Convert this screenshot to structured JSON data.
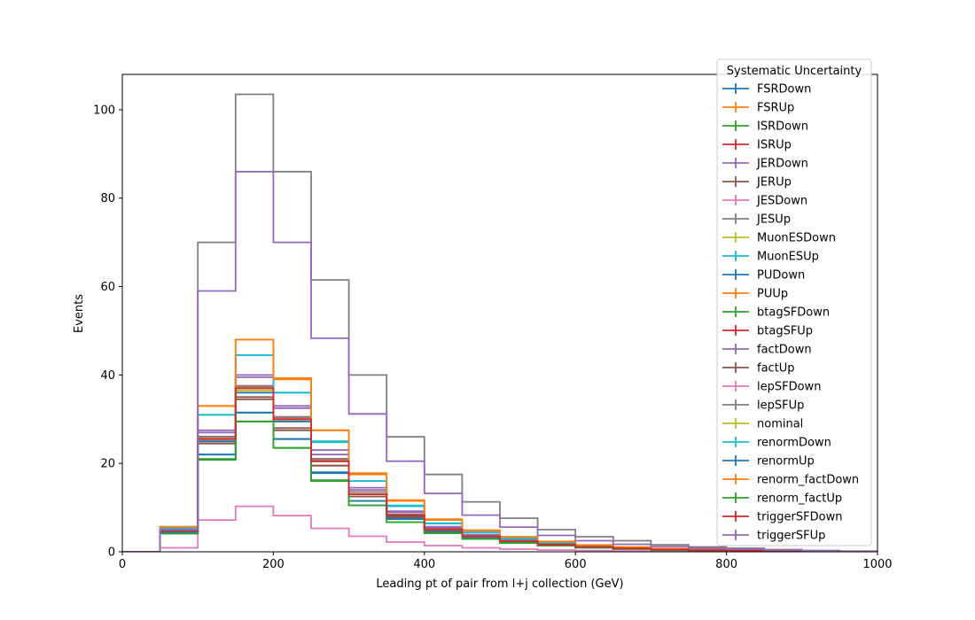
{
  "chart_data": {
    "type": "histogram-step",
    "title": "",
    "xlabel": "Leading pt of pair from l+j collection (GeV)",
    "ylabel": "Events",
    "xlim": [
      0,
      1000
    ],
    "ylim": [
      0,
      108
    ],
    "x_ticks": [
      0,
      200,
      400,
      600,
      800,
      1000
    ],
    "y_ticks": [
      0,
      20,
      40,
      60,
      80,
      100
    ],
    "x_tick_labels": [
      "0",
      "200",
      "400",
      "600",
      "800",
      "1000"
    ],
    "y_tick_labels": [
      "0",
      "20",
      "40",
      "60",
      "80",
      "100"
    ],
    "grid": false,
    "legend": {
      "title": "Systematic Uncertainty",
      "placement": "top-right"
    },
    "bin_edges": [
      0,
      50,
      100,
      150,
      200,
      250,
      300,
      350,
      400,
      450,
      500,
      550,
      600,
      650,
      700,
      750,
      800,
      850,
      900,
      950,
      1000
    ],
    "series": [
      {
        "name": "FSRDown",
        "color": "#1f77b4",
        "values": [
          0,
          4.5,
          22,
          31.5,
          25.5,
          18,
          11.5,
          7.5,
          4.5,
          3.2,
          2.2,
          1.5,
          1.0,
          0.7,
          0.5,
          0.35,
          0.25,
          0.15,
          0.1,
          0.05
        ]
      },
      {
        "name": "FSRUp",
        "color": "#ff7f0e",
        "values": [
          0,
          4.8,
          26,
          37,
          30,
          21,
          13.5,
          8.5,
          5.2,
          3.6,
          2.5,
          1.7,
          1.1,
          0.8,
          0.55,
          0.4,
          0.28,
          0.17,
          0.1,
          0.05
        ]
      },
      {
        "name": "ISRDown",
        "color": "#2ca02c",
        "values": [
          0,
          4.4,
          25,
          37,
          30,
          20.5,
          13,
          8,
          5,
          3.5,
          2.4,
          1.6,
          1.1,
          0.75,
          0.5,
          0.38,
          0.26,
          0.16,
          0.1,
          0.05
        ]
      },
      {
        "name": "ISRUp",
        "color": "#d62728",
        "values": [
          0,
          4.9,
          26,
          37.5,
          30.5,
          21,
          13.5,
          8.5,
          5.2,
          3.6,
          2.5,
          1.7,
          1.1,
          0.8,
          0.55,
          0.4,
          0.28,
          0.17,
          0.1,
          0.05
        ]
      },
      {
        "name": "JERDown",
        "color": "#9467bd",
        "values": [
          0,
          5,
          27,
          40,
          32.5,
          22,
          14,
          9,
          5.5,
          3.8,
          2.6,
          1.8,
          1.2,
          0.85,
          0.6,
          0.42,
          0.3,
          0.18,
          0.11,
          0.05
        ]
      },
      {
        "name": "JERUp",
        "color": "#8c564b",
        "values": [
          0,
          4.6,
          24.5,
          35,
          28,
          19.5,
          12.5,
          7.8,
          4.8,
          3.3,
          2.3,
          1.6,
          1.05,
          0.72,
          0.5,
          0.36,
          0.25,
          0.15,
          0.1,
          0.05
        ]
      },
      {
        "name": "JESDown",
        "color": "#e377c2",
        "values": [
          0,
          0.9,
          7.2,
          10.3,
          8.2,
          5.3,
          3.5,
          2.2,
          1.4,
          0.9,
          0.6,
          0.4,
          0.28,
          0.19,
          0.13,
          0.09,
          0.06,
          0.04,
          0.02,
          0.01
        ]
      },
      {
        "name": "JESUp",
        "color": "#7f7f7f",
        "values": [
          0,
          5,
          70,
          103.5,
          86,
          61.5,
          40,
          26,
          17.5,
          11.3,
          7.6,
          5,
          3.4,
          2.5,
          1.6,
          1.1,
          0.8,
          0.5,
          0.3,
          0.15
        ]
      },
      {
        "name": "MuonESDown",
        "color": "#bcbd22",
        "values": [
          0,
          4.7,
          25.5,
          36.5,
          29.5,
          20.5,
          13,
          8.2,
          5,
          3.5,
          2.4,
          1.6,
          1.1,
          0.75,
          0.52,
          0.37,
          0.26,
          0.16,
          0.1,
          0.05
        ]
      },
      {
        "name": "MuonESUp",
        "color": "#17becf",
        "values": [
          0,
          5.5,
          31,
          44.5,
          36,
          25,
          16,
          10.5,
          6.5,
          4.4,
          3,
          2.1,
          1.4,
          0.95,
          0.66,
          0.46,
          0.32,
          0.2,
          0.12,
          0.06
        ]
      },
      {
        "name": "PUDown",
        "color": "#1f77b4",
        "values": [
          0,
          4.6,
          25,
          36,
          29.5,
          20.5,
          13,
          8.2,
          5,
          3.5,
          2.4,
          1.6,
          1.1,
          0.75,
          0.52,
          0.37,
          0.26,
          0.16,
          0.1,
          0.05
        ]
      },
      {
        "name": "PUUp",
        "color": "#ff7f0e",
        "values": [
          0,
          5.6,
          33,
          48,
          39,
          27.5,
          17.5,
          11.5,
          7.2,
          4.8,
          3.3,
          2.3,
          1.5,
          1.05,
          0.72,
          0.5,
          0.35,
          0.22,
          0.13,
          0.06
        ]
      },
      {
        "name": "btagSFDown",
        "color": "#2ca02c",
        "values": [
          0,
          4.2,
          21,
          29.5,
          23.5,
          16,
          10.5,
          6.7,
          4.2,
          2.9,
          2,
          1.4,
          0.95,
          0.65,
          0.45,
          0.32,
          0.22,
          0.14,
          0.08,
          0.04
        ]
      },
      {
        "name": "btagSFUp",
        "color": "#d62728",
        "values": [
          0,
          4.8,
          26,
          37.5,
          30.5,
          21,
          13.5,
          8.5,
          5.2,
          3.6,
          2.5,
          1.7,
          1.1,
          0.8,
          0.55,
          0.4,
          0.28,
          0.17,
          0.1,
          0.05
        ]
      },
      {
        "name": "factDown",
        "color": "#9467bd",
        "values": [
          0,
          4.9,
          27.5,
          39.5,
          33,
          23,
          14.5,
          9.2,
          5.7,
          3.9,
          2.7,
          1.85,
          1.25,
          0.88,
          0.62,
          0.43,
          0.3,
          0.19,
          0.11,
          0.06
        ]
      },
      {
        "name": "factUp",
        "color": "#8c564b",
        "values": [
          0,
          4.5,
          24.5,
          34.5,
          27.5,
          19.5,
          12.5,
          7.8,
          4.8,
          3.3,
          2.3,
          1.55,
          1.05,
          0.72,
          0.5,
          0.36,
          0.25,
          0.15,
          0.09,
          0.05
        ]
      },
      {
        "name": "lepSFDown",
        "color": "#e377c2",
        "values": [
          0,
          4.7,
          25.5,
          37,
          30,
          20.5,
          13,
          8.3,
          5.1,
          3.5,
          2.4,
          1.65,
          1.1,
          0.76,
          0.53,
          0.38,
          0.26,
          0.16,
          0.1,
          0.05
        ]
      },
      {
        "name": "lepSFUp",
        "color": "#7f7f7f",
        "values": [
          0,
          4.8,
          26,
          37.5,
          30.5,
          21,
          13.5,
          8.5,
          5.2,
          3.6,
          2.5,
          1.7,
          1.1,
          0.8,
          0.55,
          0.4,
          0.28,
          0.17,
          0.1,
          0.05
        ]
      },
      {
        "name": "nominal",
        "color": "#bcbd22",
        "values": [
          0,
          4.7,
          25.5,
          37,
          30,
          20.5,
          13,
          8.3,
          5.1,
          3.5,
          2.4,
          1.65,
          1.1,
          0.76,
          0.53,
          0.38,
          0.26,
          0.16,
          0.1,
          0.05
        ]
      },
      {
        "name": "renormDown",
        "color": "#17becf",
        "values": [
          0,
          5.3,
          31,
          44.5,
          36,
          24.8,
          16,
          10.3,
          6.4,
          4.4,
          3,
          2.1,
          1.4,
          0.95,
          0.66,
          0.46,
          0.32,
          0.2,
          0.12,
          0.06
        ]
      },
      {
        "name": "renormUp",
        "color": "#1f77b4",
        "values": [
          0,
          4.4,
          22,
          31.5,
          25.5,
          17.8,
          11.5,
          7.4,
          4.5,
          3.1,
          2.15,
          1.5,
          1.0,
          0.68,
          0.47,
          0.33,
          0.23,
          0.14,
          0.09,
          0.04
        ]
      },
      {
        "name": "renorm_factDown",
        "color": "#ff7f0e",
        "values": [
          0,
          5.7,
          33,
          48,
          39.3,
          27.5,
          17.8,
          11.7,
          7.4,
          4.9,
          3.4,
          2.35,
          1.55,
          1.08,
          0.74,
          0.52,
          0.36,
          0.22,
          0.13,
          0.07
        ]
      },
      {
        "name": "renorm_factUp",
        "color": "#2ca02c",
        "values": [
          0,
          4.1,
          20.8,
          29.5,
          23.5,
          16.2,
          10.5,
          6.7,
          4.2,
          2.9,
          2,
          1.4,
          0.95,
          0.65,
          0.45,
          0.32,
          0.22,
          0.14,
          0.08,
          0.04
        ]
      },
      {
        "name": "triggerSFDown",
        "color": "#d62728",
        "values": [
          0,
          4.7,
          25.5,
          37,
          30,
          20.5,
          13,
          8.3,
          5.1,
          3.5,
          2.4,
          1.65,
          1.1,
          0.76,
          0.53,
          0.38,
          0.26,
          0.16,
          0.1,
          0.05
        ]
      },
      {
        "name": "triggerSFUp",
        "color": "#9467bd",
        "values": [
          0,
          5,
          59,
          86,
          70,
          48.3,
          31.2,
          20.5,
          13.2,
          8.3,
          5.6,
          3.7,
          2.5,
          1.7,
          1.2,
          0.85,
          0.6,
          0.38,
          0.22,
          0.1
        ]
      }
    ]
  }
}
